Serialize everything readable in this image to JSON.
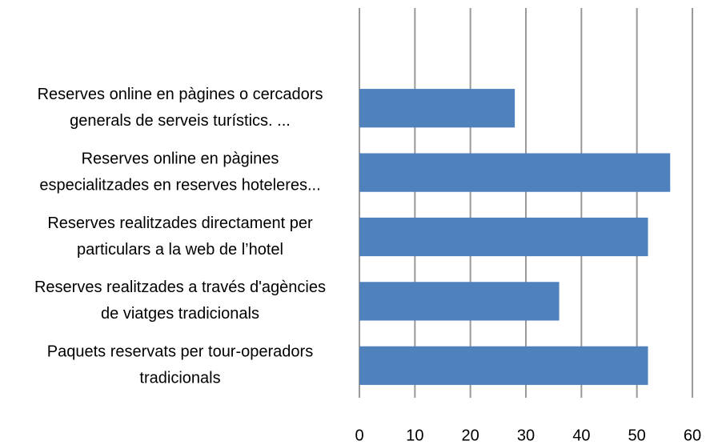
{
  "chart_data": {
    "type": "bar",
    "orientation": "horizontal",
    "categories": [
      [
        "Reserves online en pàgines o cercadors",
        "generals de serveis turístics. ..."
      ],
      [
        "Reserves online en pàgines",
        "especialitzades en reserves hoteleres..."
      ],
      [
        "Reserves realitzades directament per",
        "particulars a la web de l’hotel"
      ],
      [
        "Reserves realitzades a través d'agències",
        "de viatges tradicionals"
      ],
      [
        "Paquets reservats per tour-operadors",
        "tradicionals"
      ]
    ],
    "values": [
      28,
      56,
      52,
      36,
      52
    ],
    "color": "#4f81bd",
    "xlim": [
      0,
      60
    ],
    "xticks": [
      0,
      10,
      20,
      30,
      40,
      50,
      60
    ],
    "grid": true
  }
}
